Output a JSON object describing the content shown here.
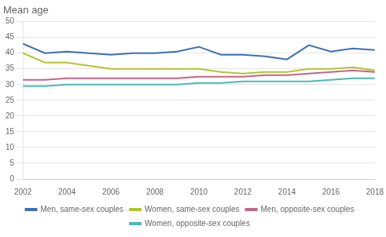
{
  "chart_data": {
    "type": "line",
    "title": "Mean age",
    "x": [
      2002,
      2003,
      2004,
      2005,
      2006,
      2007,
      2008,
      2009,
      2010,
      2011,
      2012,
      2013,
      2014,
      2015,
      2016,
      2017,
      2018
    ],
    "series": [
      {
        "name": "Men, same-sex couples",
        "color": "#3b6fb6",
        "values": [
          43,
          40,
          40.5,
          40,
          39.5,
          40,
          40,
          40.5,
          42,
          39.5,
          39.5,
          39,
          38,
          42.5,
          40.5,
          41.5,
          41
        ]
      },
      {
        "name": "Women, same-sex couples",
        "color": "#b0c62e",
        "values": [
          40,
          37,
          37,
          36,
          35,
          35,
          35,
          35,
          35,
          34,
          33.5,
          34,
          34,
          35,
          35,
          35.5,
          34.5
        ]
      },
      {
        "name": "Men, opposite-sex couples",
        "color": "#c4648a",
        "values": [
          31.5,
          31.5,
          32,
          32,
          32,
          32,
          32,
          32,
          32.5,
          32.5,
          32.5,
          33,
          33,
          33.5,
          34,
          34.5,
          34
        ]
      },
      {
        "name": "Women, opposite-sex couples",
        "color": "#4bb8b8",
        "values": [
          29.5,
          29.5,
          30,
          30,
          30,
          30,
          30,
          30,
          30.5,
          30.5,
          31,
          31,
          31,
          31,
          31.5,
          32,
          32
        ]
      }
    ],
    "xlim": [
      2002,
      2018
    ],
    "xticks": [
      2002,
      2004,
      2006,
      2008,
      2010,
      2012,
      2014,
      2016,
      2018
    ],
    "ylim": [
      0,
      50
    ],
    "yticks": [
      0,
      5,
      10,
      15,
      20,
      25,
      30,
      35,
      40,
      45,
      50
    ],
    "grid": "y",
    "legend": "bottom"
  }
}
